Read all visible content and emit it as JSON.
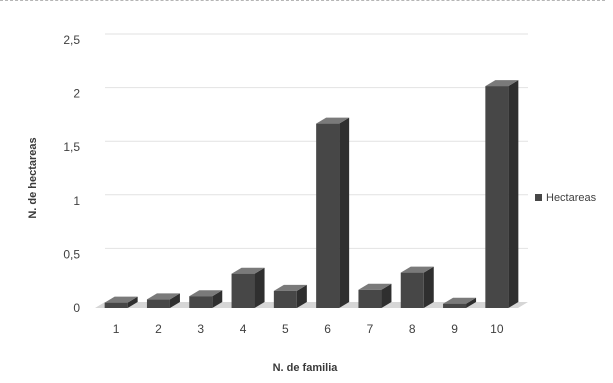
{
  "chart_data": {
    "type": "bar",
    "title": "",
    "xlabel": "N. de familia",
    "ylabel": "N. de hectareas",
    "categories": [
      "1",
      "2",
      "3",
      "4",
      "5",
      "6",
      "7",
      "8",
      "9",
      "10"
    ],
    "series": [
      {
        "name": "Hectareas",
        "values": [
          0.05,
          0.08,
          0.11,
          0.32,
          0.16,
          1.72,
          0.17,
          0.33,
          0.04,
          2.07
        ]
      }
    ],
    "ylim": [
      0,
      2.5
    ],
    "yticks": [
      "0",
      "0,5",
      "1",
      "1,5",
      "2",
      "2,5"
    ],
    "ytick_values": [
      0,
      0.5,
      1,
      1.5,
      2,
      2.5
    ],
    "grid": true,
    "legend_position": "right",
    "colors": {
      "bar_front": "#474747",
      "bar_top": "#7a7a7a",
      "bar_side": "#2f2f2f",
      "gridline": "#e2e2e2",
      "floor": "#d6d6d6"
    }
  }
}
